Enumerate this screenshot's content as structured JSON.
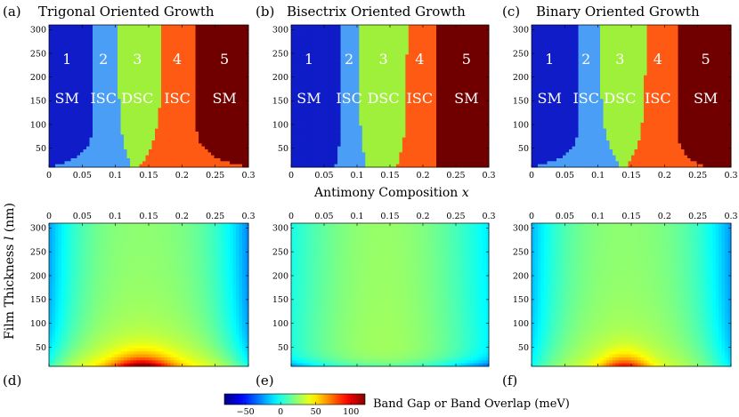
{
  "figure": {
    "xlabel_shared": "Antimony Composition",
    "xlabel_var": "x",
    "ylabel_shared": "Film Thickness",
    "ylabel_var": "l",
    "ylabel_unit": "(nm)"
  },
  "colors": {
    "SM_low": "#0f1cc8",
    "ISC_low": "#4a9ef6",
    "DSC": "#9ff03a",
    "ISC_high": "#ff5a14",
    "SM_high": "#700000"
  },
  "chart_data": [
    {
      "type": "heatmap",
      "id": "a",
      "panel_label": "(a)",
      "title": "Trigonal Oriented Growth",
      "xlim": [
        0,
        0.3
      ],
      "ylim": [
        10,
        310
      ],
      "xticks": [
        "0",
        "0.05",
        "0.1",
        "0.15",
        "0.2",
        "0.25",
        "0.3"
      ],
      "yticks": [
        "50",
        "100",
        "150",
        "200",
        "250",
        "300"
      ],
      "regions": [
        {
          "num": "1",
          "label": "SM",
          "x": 0.027
        },
        {
          "num": "2",
          "label": "ISC",
          "x": 0.082
        },
        {
          "num": "3",
          "label": "DSC",
          "x": 0.133
        },
        {
          "num": "4",
          "label": "ISC",
          "x": 0.193
        },
        {
          "num": "5",
          "label": "SM",
          "x": 0.264
        }
      ],
      "boundaries_x_at_top": [
        0.067,
        0.104,
        0.17,
        0.22
      ],
      "boundaries_x_at_bottom": [
        0.0,
        0.125,
        0.135,
        0.3
      ]
    },
    {
      "type": "heatmap",
      "id": "b",
      "panel_label": "(b)",
      "title": "Bisectrix Oriented Growth",
      "xlim": [
        0,
        0.3
      ],
      "ylim": [
        10,
        310
      ],
      "xticks": [
        "0",
        "0.05",
        "0.1",
        "0.15",
        "0.2",
        "0.25",
        "0.3"
      ],
      "yticks": [
        "50",
        "100",
        "150",
        "200",
        "250",
        "300"
      ],
      "regions": [
        {
          "num": "1",
          "label": "SM",
          "x": 0.027
        },
        {
          "num": "2",
          "label": "ISC",
          "x": 0.088
        },
        {
          "num": "3",
          "label": "DSC",
          "x": 0.14
        },
        {
          "num": "4",
          "label": "ISC",
          "x": 0.195
        },
        {
          "num": "5",
          "label": "SM",
          "x": 0.266
        }
      ],
      "boundaries_x_at_top": [
        0.074,
        0.103,
        0.176,
        0.22
      ],
      "boundaries_x_at_bottom": [
        0.065,
        0.115,
        0.16,
        0.22
      ]
    },
    {
      "type": "heatmap",
      "id": "c",
      "panel_label": "(c)",
      "title": "Binary Oriented Growth",
      "xlim": [
        0,
        0.3
      ],
      "ylim": [
        10,
        310
      ],
      "xticks": [
        "0",
        "0.05",
        "0.1",
        "0.15",
        "0.2",
        "0.25",
        "0.3"
      ],
      "yticks": [
        "50",
        "100",
        "150",
        "200",
        "250",
        "300"
      ],
      "regions": [
        {
          "num": "1",
          "label": "SM",
          "x": 0.027
        },
        {
          "num": "2",
          "label": "ISC",
          "x": 0.082
        },
        {
          "num": "3",
          "label": "DSC",
          "x": 0.133
        },
        {
          "num": "4",
          "label": "ISC",
          "x": 0.19
        },
        {
          "num": "5",
          "label": "SM",
          "x": 0.262
        }
      ],
      "boundaries_x_at_top": [
        0.072,
        0.103,
        0.172,
        0.218
      ],
      "boundaries_x_at_bottom": [
        0.0,
        0.135,
        0.142,
        0.265
      ]
    },
    {
      "type": "heatmap",
      "id": "d",
      "panel_label": "(d)",
      "variant": "trigonal",
      "xlim": [
        0,
        0.3
      ],
      "ylim": [
        10,
        310
      ],
      "xticks": [
        "0",
        "0.05",
        "0.1",
        "0.15",
        "0.2",
        "0.25",
        "0.3"
      ],
      "yticks": [
        "50",
        "100",
        "150",
        "200",
        "250",
        "300"
      ],
      "z_peak_meV": 110,
      "z_peak_at": {
        "x": 0.14,
        "l": 10
      }
    },
    {
      "type": "heatmap",
      "id": "e",
      "panel_label": "(e)",
      "variant": "bisectrix",
      "xlim": [
        0,
        0.3
      ],
      "ylim": [
        10,
        310
      ],
      "xticks": [
        "0",
        "0.05",
        "0.1",
        "0.15",
        "0.2",
        "0.25",
        "0.3"
      ],
      "yticks": [
        "50",
        "100",
        "150",
        "200",
        "250",
        "300"
      ],
      "z_peak_meV": 30,
      "z_peak_at": {
        "x": 0.14,
        "l": 150
      }
    },
    {
      "type": "heatmap",
      "id": "f",
      "panel_label": "(f)",
      "variant": "binary",
      "xlim": [
        0,
        0.3
      ],
      "ylim": [
        10,
        310
      ],
      "xticks": [
        "0",
        "0.05",
        "0.1",
        "0.15",
        "0.2",
        "0.25",
        "0.3"
      ],
      "yticks": [
        "50",
        "100",
        "150",
        "200",
        "250",
        "300"
      ],
      "z_peak_meV": 90,
      "z_peak_at": {
        "x": 0.14,
        "l": 30
      }
    },
    {
      "type": "colorbar",
      "id": "cbar",
      "label": "Band Gap or Band Overlap (meV)",
      "range": [
        -80,
        120
      ],
      "ticks": [
        {
          "value": -50,
          "text": "−50"
        },
        {
          "value": 0,
          "text": "0"
        },
        {
          "value": 50,
          "text": "50"
        },
        {
          "value": 100,
          "text": "100"
        }
      ]
    }
  ]
}
